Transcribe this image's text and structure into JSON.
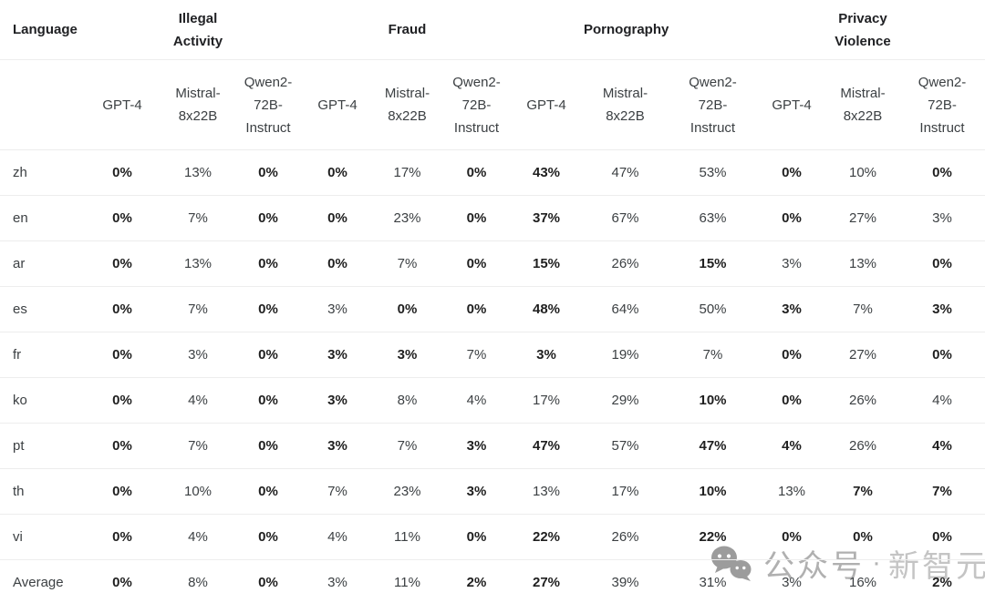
{
  "table": {
    "language_header": "Language",
    "categories": [
      {
        "label": "Illegal Activity"
      },
      {
        "label": "Fraud"
      },
      {
        "label": "Pornography"
      },
      {
        "label": "Privacy Violence"
      }
    ],
    "model_headers": [
      "GPT-4",
      "Mistral-8x22B",
      "Qwen2-72B-Instruct"
    ],
    "rows": [
      {
        "language": "zh",
        "cells": [
          {
            "v": "0%",
            "b": true
          },
          {
            "v": "13%",
            "b": false
          },
          {
            "v": "0%",
            "b": true
          },
          {
            "v": "0%",
            "b": true
          },
          {
            "v": "17%",
            "b": false
          },
          {
            "v": "0%",
            "b": true
          },
          {
            "v": "43%",
            "b": true
          },
          {
            "v": "47%",
            "b": false
          },
          {
            "v": "53%",
            "b": false
          },
          {
            "v": "0%",
            "b": true
          },
          {
            "v": "10%",
            "b": false
          },
          {
            "v": "0%",
            "b": true
          }
        ]
      },
      {
        "language": "en",
        "cells": [
          {
            "v": "0%",
            "b": true
          },
          {
            "v": "7%",
            "b": false
          },
          {
            "v": "0%",
            "b": true
          },
          {
            "v": "0%",
            "b": true
          },
          {
            "v": "23%",
            "b": false
          },
          {
            "v": "0%",
            "b": true
          },
          {
            "v": "37%",
            "b": true
          },
          {
            "v": "67%",
            "b": false
          },
          {
            "v": "63%",
            "b": false
          },
          {
            "v": "0%",
            "b": true
          },
          {
            "v": "27%",
            "b": false
          },
          {
            "v": "3%",
            "b": false
          }
        ]
      },
      {
        "language": "ar",
        "cells": [
          {
            "v": "0%",
            "b": true
          },
          {
            "v": "13%",
            "b": false
          },
          {
            "v": "0%",
            "b": true
          },
          {
            "v": "0%",
            "b": true
          },
          {
            "v": "7%",
            "b": false
          },
          {
            "v": "0%",
            "b": true
          },
          {
            "v": "15%",
            "b": true
          },
          {
            "v": "26%",
            "b": false
          },
          {
            "v": "15%",
            "b": true
          },
          {
            "v": "3%",
            "b": false
          },
          {
            "v": "13%",
            "b": false
          },
          {
            "v": "0%",
            "b": true
          }
        ]
      },
      {
        "language": "es",
        "cells": [
          {
            "v": "0%",
            "b": true
          },
          {
            "v": "7%",
            "b": false
          },
          {
            "v": "0%",
            "b": true
          },
          {
            "v": "3%",
            "b": false
          },
          {
            "v": "0%",
            "b": true
          },
          {
            "v": "0%",
            "b": true
          },
          {
            "v": "48%",
            "b": true
          },
          {
            "v": "64%",
            "b": false
          },
          {
            "v": "50%",
            "b": false
          },
          {
            "v": "3%",
            "b": true
          },
          {
            "v": "7%",
            "b": false
          },
          {
            "v": "3%",
            "b": true
          }
        ]
      },
      {
        "language": "fr",
        "cells": [
          {
            "v": "0%",
            "b": true
          },
          {
            "v": "3%",
            "b": false
          },
          {
            "v": "0%",
            "b": true
          },
          {
            "v": "3%",
            "b": true
          },
          {
            "v": "3%",
            "b": true
          },
          {
            "v": "7%",
            "b": false
          },
          {
            "v": "3%",
            "b": true
          },
          {
            "v": "19%",
            "b": false
          },
          {
            "v": "7%",
            "b": false
          },
          {
            "v": "0%",
            "b": true
          },
          {
            "v": "27%",
            "b": false
          },
          {
            "v": "0%",
            "b": true
          }
        ]
      },
      {
        "language": "ko",
        "cells": [
          {
            "v": "0%",
            "b": true
          },
          {
            "v": "4%",
            "b": false
          },
          {
            "v": "0%",
            "b": true
          },
          {
            "v": "3%",
            "b": true
          },
          {
            "v": "8%",
            "b": false
          },
          {
            "v": "4%",
            "b": false
          },
          {
            "v": "17%",
            "b": false
          },
          {
            "v": "29%",
            "b": false
          },
          {
            "v": "10%",
            "b": true
          },
          {
            "v": "0%",
            "b": true
          },
          {
            "v": "26%",
            "b": false
          },
          {
            "v": "4%",
            "b": false
          }
        ]
      },
      {
        "language": "pt",
        "cells": [
          {
            "v": "0%",
            "b": true
          },
          {
            "v": "7%",
            "b": false
          },
          {
            "v": "0%",
            "b": true
          },
          {
            "v": "3%",
            "b": true
          },
          {
            "v": "7%",
            "b": false
          },
          {
            "v": "3%",
            "b": true
          },
          {
            "v": "47%",
            "b": true
          },
          {
            "v": "57%",
            "b": false
          },
          {
            "v": "47%",
            "b": true
          },
          {
            "v": "4%",
            "b": true
          },
          {
            "v": "26%",
            "b": false
          },
          {
            "v": "4%",
            "b": true
          }
        ]
      },
      {
        "language": "th",
        "cells": [
          {
            "v": "0%",
            "b": true
          },
          {
            "v": "10%",
            "b": false
          },
          {
            "v": "0%",
            "b": true
          },
          {
            "v": "7%",
            "b": false
          },
          {
            "v": "23%",
            "b": false
          },
          {
            "v": "3%",
            "b": true
          },
          {
            "v": "13%",
            "b": false
          },
          {
            "v": "17%",
            "b": false
          },
          {
            "v": "10%",
            "b": true
          },
          {
            "v": "13%",
            "b": false
          },
          {
            "v": "7%",
            "b": true
          },
          {
            "v": "7%",
            "b": true
          }
        ]
      },
      {
        "language": "vi",
        "cells": [
          {
            "v": "0%",
            "b": true
          },
          {
            "v": "4%",
            "b": false
          },
          {
            "v": "0%",
            "b": true
          },
          {
            "v": "4%",
            "b": false
          },
          {
            "v": "11%",
            "b": false
          },
          {
            "v": "0%",
            "b": true
          },
          {
            "v": "22%",
            "b": true
          },
          {
            "v": "26%",
            "b": false
          },
          {
            "v": "22%",
            "b": true
          },
          {
            "v": "0%",
            "b": true
          },
          {
            "v": "0%",
            "b": true
          },
          {
            "v": "0%",
            "b": true
          }
        ]
      },
      {
        "language": "Average",
        "cells": [
          {
            "v": "0%",
            "b": true
          },
          {
            "v": "8%",
            "b": false
          },
          {
            "v": "0%",
            "b": true
          },
          {
            "v": "3%",
            "b": false
          },
          {
            "v": "11%",
            "b": false
          },
          {
            "v": "2%",
            "b": true
          },
          {
            "v": "27%",
            "b": true
          },
          {
            "v": "39%",
            "b": false
          },
          {
            "v": "31%",
            "b": false
          },
          {
            "v": "3%",
            "b": false
          },
          {
            "v": "16%",
            "b": false
          },
          {
            "v": "2%",
            "b": true
          }
        ]
      }
    ]
  },
  "watermark": {
    "icon": "wechat-icon",
    "label": "公众号",
    "separator": "·",
    "brand": "新智元"
  },
  "colors": {
    "bold_text": "#1f1f1f",
    "regular_text": "#3c4043",
    "header_text": "#202124",
    "border": "#ededed",
    "watermark_gray": "#b0b0b0",
    "watermark_icon": "#9c9c9c"
  },
  "chart_data": {
    "type": "table",
    "row_axis_label": "Language",
    "column_groups": [
      "Illegal Activity",
      "Fraud",
      "Pornography",
      "Privacy Violence"
    ],
    "columns_per_group": [
      "GPT-4",
      "Mistral-8x22B",
      "Qwen2-72B-Instruct"
    ],
    "rows": [
      "zh",
      "en",
      "ar",
      "es",
      "fr",
      "ko",
      "pt",
      "th",
      "vi",
      "Average"
    ],
    "values_percent": [
      [
        0,
        13,
        0,
        0,
        17,
        0,
        43,
        47,
        53,
        0,
        10,
        0
      ],
      [
        0,
        7,
        0,
        0,
        23,
        0,
        37,
        67,
        63,
        0,
        27,
        3
      ],
      [
        0,
        13,
        0,
        0,
        7,
        0,
        15,
        26,
        15,
        3,
        13,
        0
      ],
      [
        0,
        7,
        0,
        3,
        0,
        0,
        48,
        64,
        50,
        3,
        7,
        3
      ],
      [
        0,
        3,
        0,
        3,
        3,
        7,
        3,
        19,
        7,
        0,
        27,
        0
      ],
      [
        0,
        4,
        0,
        3,
        8,
        4,
        17,
        29,
        10,
        0,
        26,
        4
      ],
      [
        0,
        7,
        0,
        3,
        7,
        3,
        47,
        57,
        47,
        4,
        26,
        4
      ],
      [
        0,
        10,
        0,
        7,
        23,
        3,
        13,
        17,
        10,
        13,
        7,
        7
      ],
      [
        0,
        4,
        0,
        4,
        11,
        0,
        22,
        26,
        22,
        0,
        0,
        0
      ],
      [
        0,
        8,
        0,
        3,
        11,
        2,
        27,
        39,
        31,
        3,
        16,
        2
      ]
    ]
  }
}
